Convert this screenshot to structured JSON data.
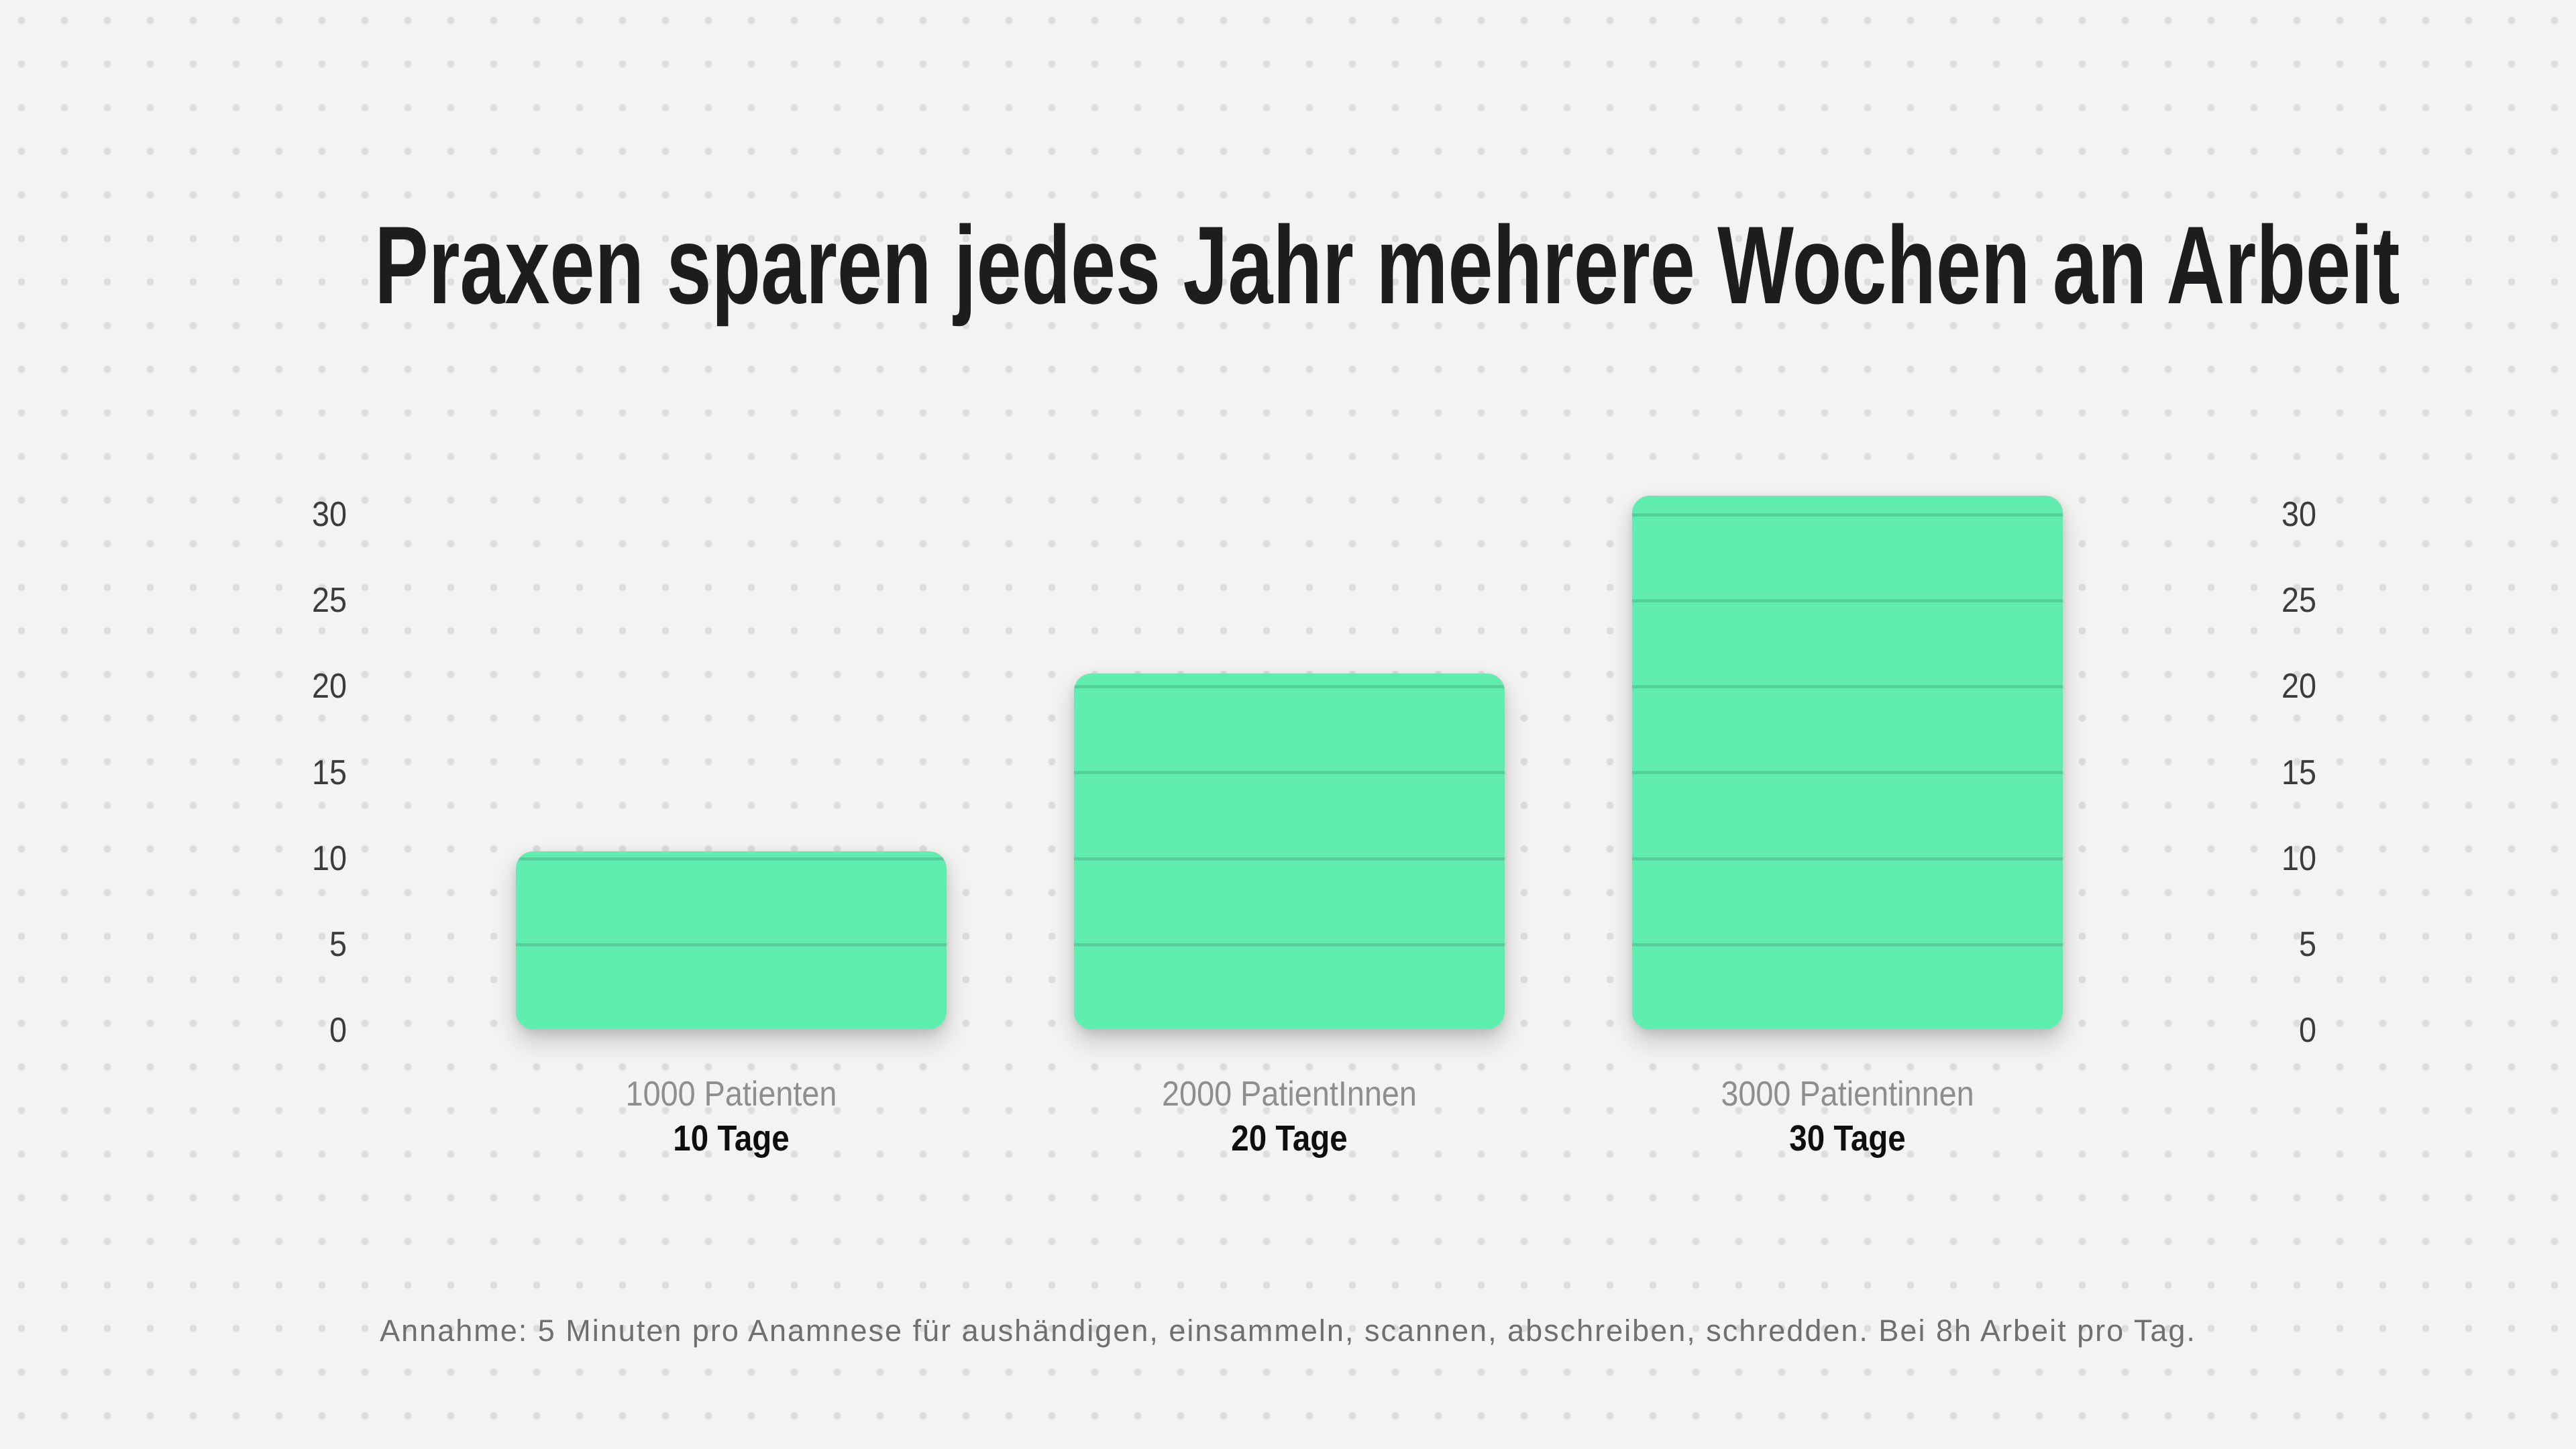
{
  "title": "Praxen sparen jedes Jahr mehrere Wochen an Arbeit",
  "footnote": "Annahme: 5 Minuten pro Anamnese für aushändigen, einsammeln, scannen, abschreiben, schredden. Bei 8h Arbeit pro Tag.",
  "colors": {
    "bg": "#f3f3f1",
    "dot": "#dcdcda",
    "bar": "#60edb0",
    "bar_line": "#55cd9a",
    "title_text": "#1d1d1d",
    "tick_text": "#3c3c3c",
    "category_text": "#8e8e8e",
    "value_text": "#0e0e0e",
    "footnote_text": "#6f6f6f"
  },
  "chart_data": {
    "type": "bar",
    "title": "Praxen sparen jedes Jahr mehrere Wochen an Arbeit",
    "categories": [
      "1000 Patienten",
      "2000 PatientInnen",
      "3000 Patientinnen"
    ],
    "values": [
      10,
      20,
      30
    ],
    "bar_value_labels": [
      "10 Tage",
      "20 Tage",
      "30 Tage"
    ],
    "unit": "Tage",
    "xlabel": "",
    "ylabel": "",
    "ylim": [
      0,
      30
    ],
    "yticks": [
      0,
      5,
      10,
      15,
      20,
      25,
      30
    ],
    "y_axis_sides": [
      "left",
      "right"
    ],
    "grid": "horizontal gridlines every 5 units, visible only across the bars",
    "legend": "none",
    "background_pattern": "light gray dot grid"
  }
}
